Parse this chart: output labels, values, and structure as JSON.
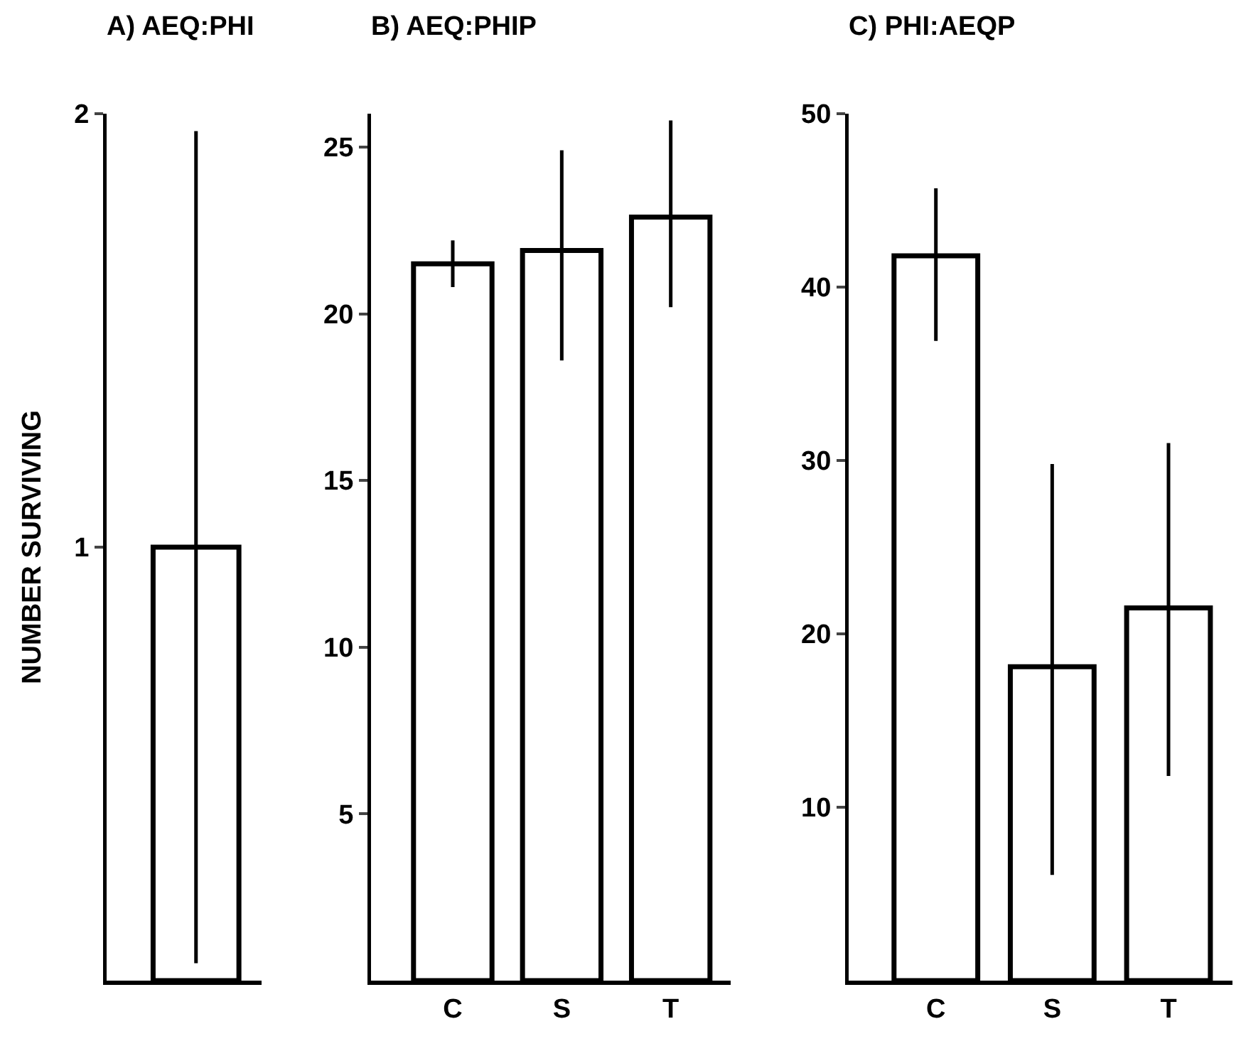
{
  "chart_data": [
    {
      "type": "bar",
      "title": "A) AEQ:PHI",
      "ylabel": "NUMBER SURVIVING",
      "categories": [
        null
      ],
      "values": [
        1
      ],
      "color": "#ffffff",
      "errors": [
        [
          0.04,
          1.96
        ]
      ],
      "ylim": [
        0,
        2
      ],
      "yticks": [
        1,
        2
      ],
      "grid": false,
      "legend": false
    },
    {
      "type": "bar",
      "title": "B) AEQ:PHIP",
      "categories": [
        "C",
        "S",
        "T"
      ],
      "values": [
        21.5,
        21.9,
        22.9
      ],
      "color": "#ffffff",
      "errors": [
        [
          20.8,
          22.2
        ],
        [
          18.6,
          24.9
        ],
        [
          20.2,
          25.8
        ]
      ],
      "ylim": [
        0,
        26
      ],
      "yticks": [
        5,
        10,
        15,
        20,
        25
      ],
      "grid": false,
      "legend": false
    },
    {
      "type": "bar",
      "title": "C) PHI:AEQP",
      "categories": [
        "C",
        "S",
        "T"
      ],
      "values": [
        41.8,
        18.1,
        21.5
      ],
      "color": "#ffffff",
      "errors": [
        [
          36.9,
          45.7
        ],
        [
          6.1,
          29.8
        ],
        [
          11.8,
          31.0
        ]
      ],
      "ylim": [
        0,
        50
      ],
      "yticks": [
        10,
        20,
        30,
        40,
        50
      ],
      "grid": false,
      "legend": false
    }
  ]
}
